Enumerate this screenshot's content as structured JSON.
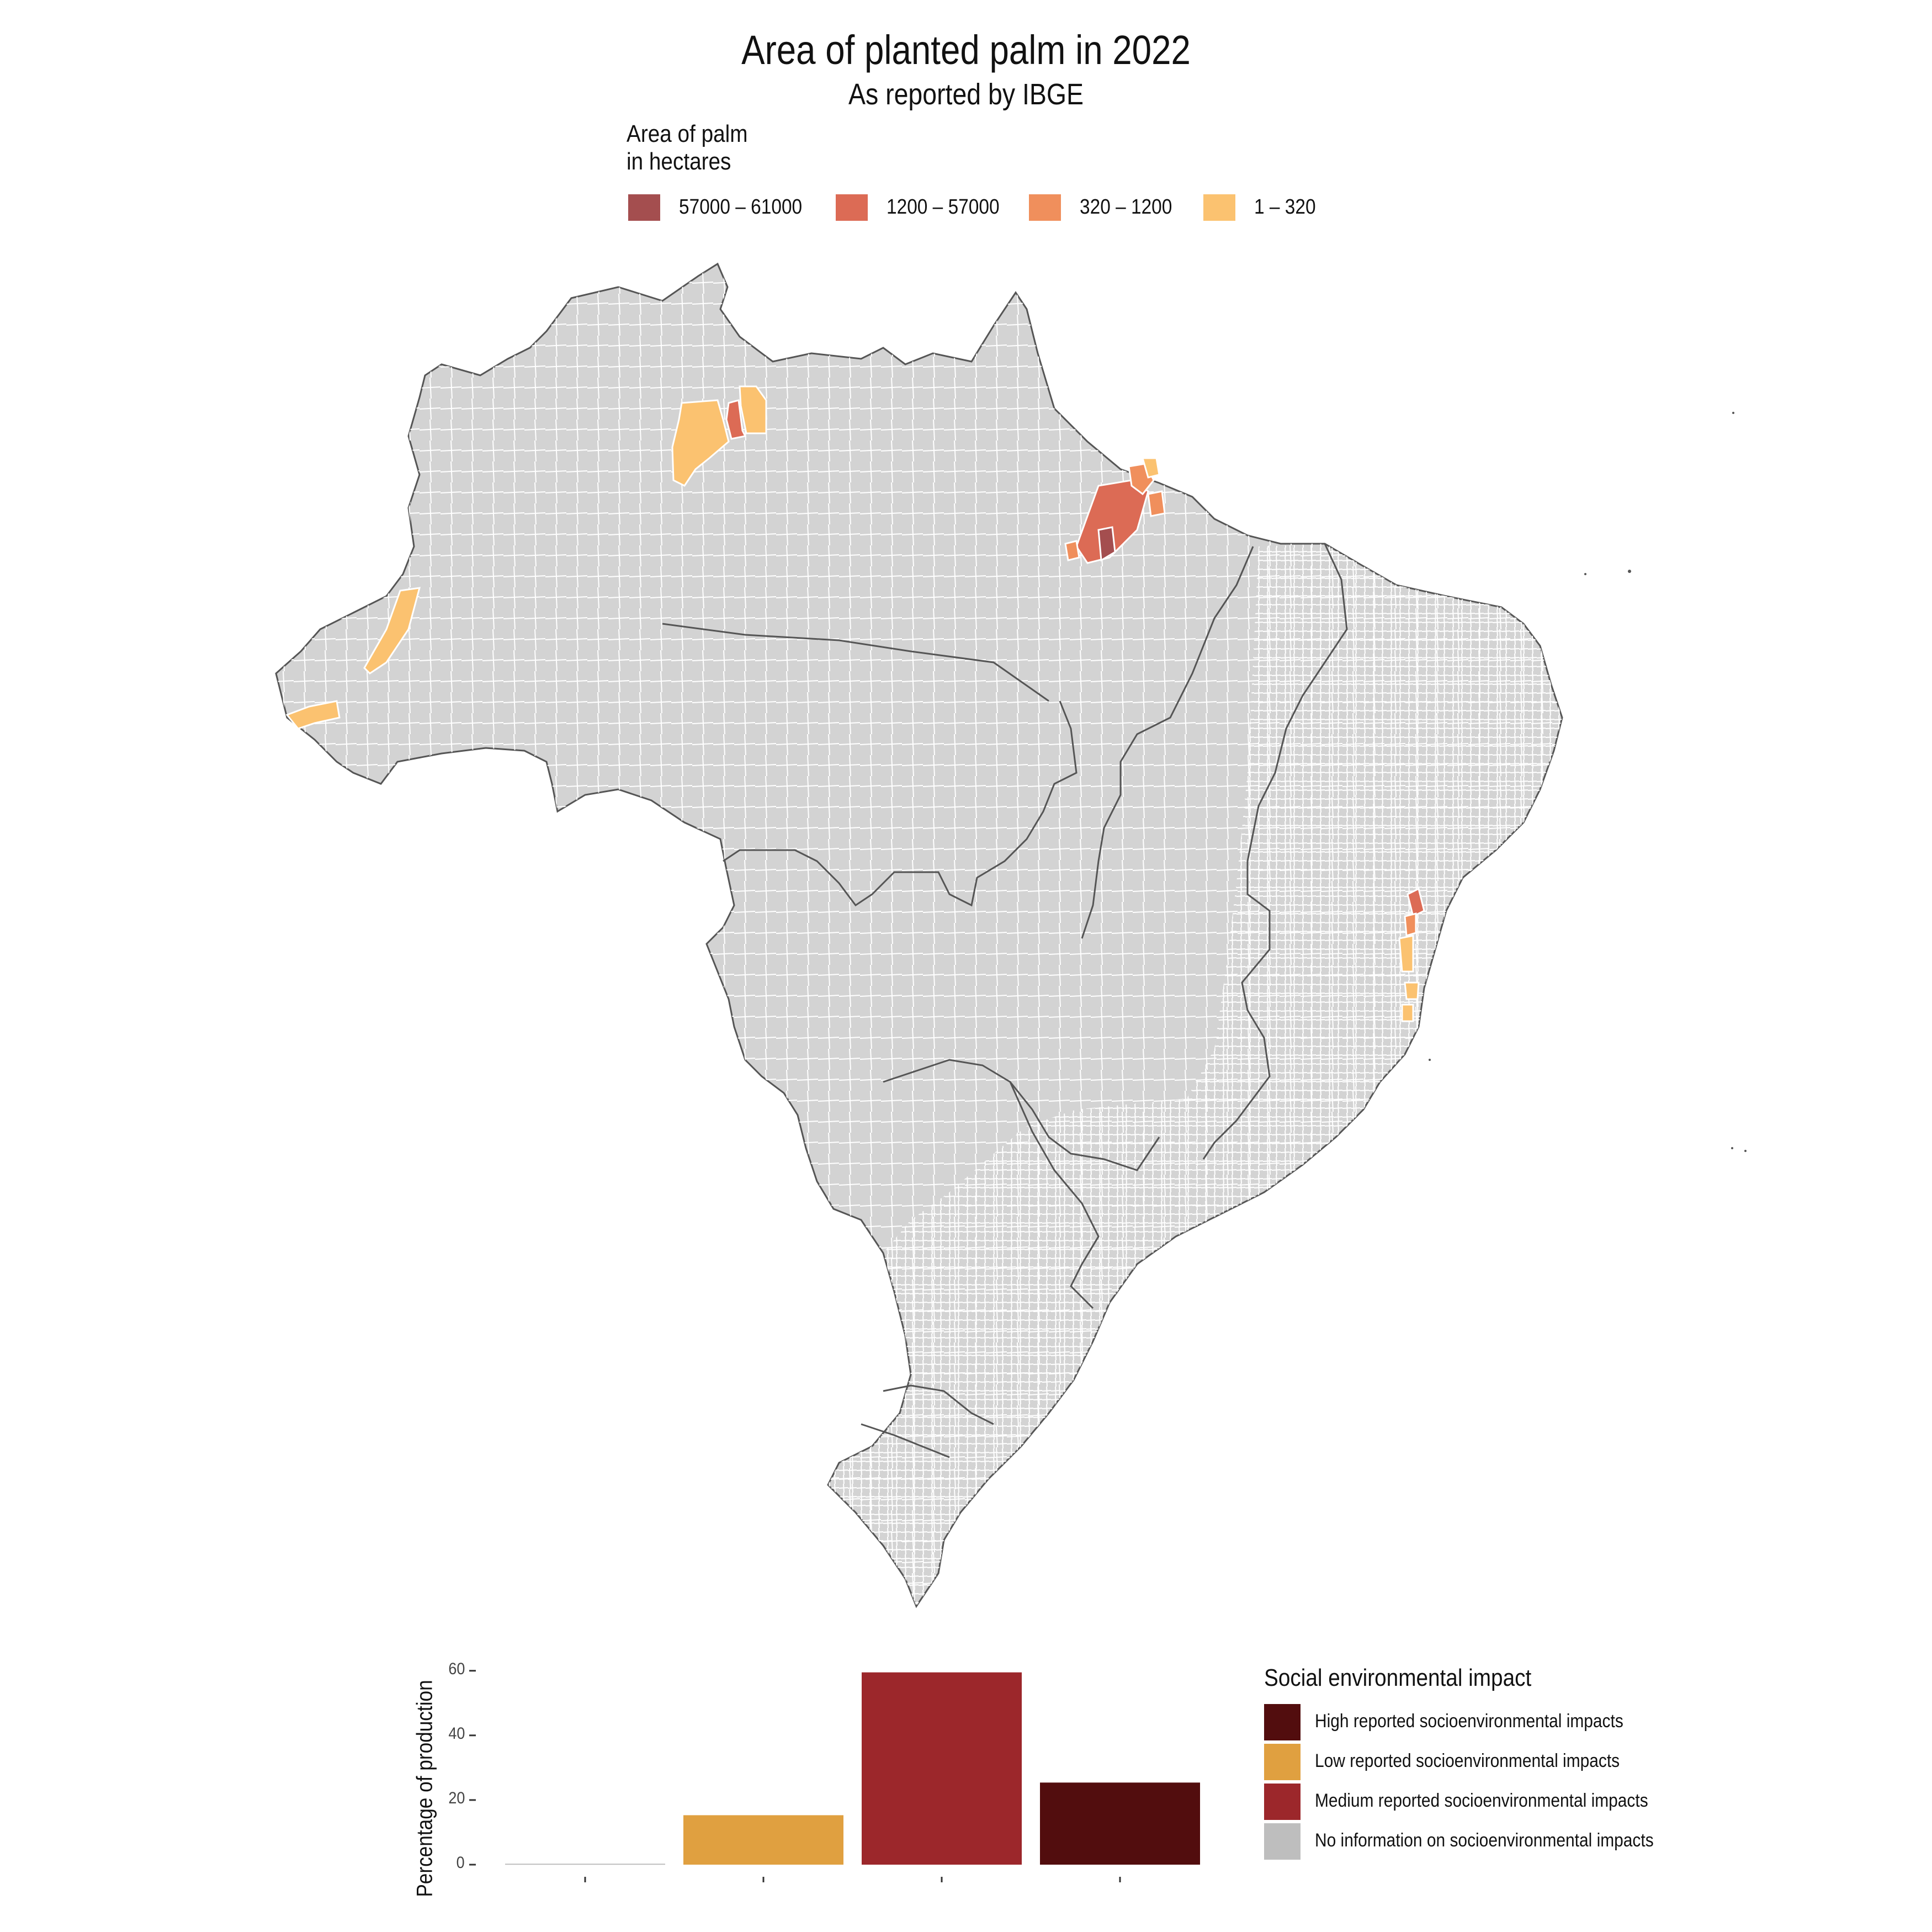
{
  "title": "Area of planted palm in 2022",
  "subtitle": "As reported by IBGE",
  "map_legend": {
    "title_line1": "Area of palm",
    "title_line2": "in hectares",
    "items": [
      {
        "label": "57000 – 61000",
        "color": "#a44e4f"
      },
      {
        "label": "1200 – 57000",
        "color": "#dc6b55"
      },
      {
        "label": "320 – 1200",
        "color": "#f08f5c"
      },
      {
        "label": "1 – 320",
        "color": "#fbc270"
      }
    ]
  },
  "map_colors": {
    "land": "#d3d3d3",
    "municipal_border": "#ffffff",
    "state_border": "#555555",
    "no_data": "#d3d3d3"
  },
  "chart_data": {
    "type": "bar",
    "ylabel": "Percentage of production",
    "xlabel": "",
    "ylim": [
      0,
      62
    ],
    "yticks": [
      0,
      20,
      40,
      60
    ],
    "categories": [
      "No information on socioenvironmental impacts",
      "Low reported socioenvironmental impacts",
      "Medium reported socioenvironmental impacts",
      "High reported socioenvironmental impacts"
    ],
    "values": [
      0.3,
      15.3,
      59.5,
      25.4
    ],
    "colors": [
      "#bebebe",
      "#e0a040",
      "#9c272b",
      "#520d0e"
    ],
    "legend": {
      "title": "Social environmental impact",
      "position": "right",
      "items": [
        {
          "label": "High reported socioenvironmental impacts",
          "color": "#520d0e"
        },
        {
          "label": "Low reported socioenvironmental impacts",
          "color": "#e0a040"
        },
        {
          "label": "Medium reported socioenvironmental impacts",
          "color": "#9c272b"
        },
        {
          "label": "No information on socioenvironmental impacts",
          "color": "#bebebe"
        }
      ]
    },
    "grid": false
  }
}
